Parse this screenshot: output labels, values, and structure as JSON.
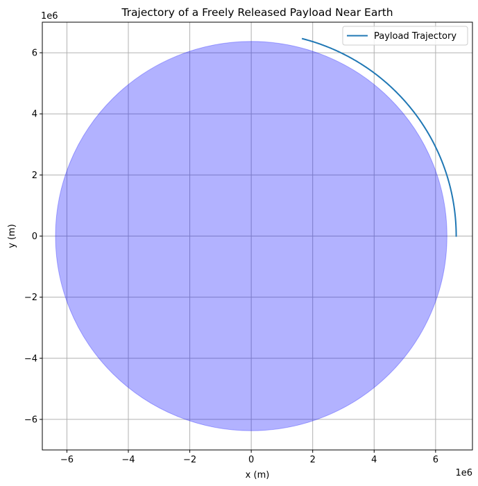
{
  "chart_data": {
    "type": "line",
    "title": "Trajectory of a Freely Released Payload Near Earth",
    "xlabel": "x (m)",
    "ylabel": "y (m)",
    "x_offset_label": "1e6",
    "y_offset_label": "1e6",
    "xlim": [
      -6800000.0,
      7200000.0
    ],
    "ylim": [
      -7000000.0,
      7000000.0
    ],
    "xticks": [
      -6000000.0,
      -4000000.0,
      -2000000.0,
      0,
      2000000.0,
      4000000.0,
      6000000.0
    ],
    "xtick_labels": [
      "−6",
      "−4",
      "−2",
      "0",
      "2",
      "4",
      "6"
    ],
    "yticks": [
      -6000000.0,
      -4000000.0,
      -2000000.0,
      0,
      2000000.0,
      4000000.0,
      6000000.0
    ],
    "ytick_labels": [
      "−6",
      "−4",
      "−2",
      "0",
      "2",
      "4",
      "6"
    ],
    "grid": true,
    "legend_position": "top-right",
    "earth": {
      "radius": 6371000.0,
      "fill_color": "#0000ff",
      "fill_opacity": 0.3
    },
    "series": [
      {
        "name": "Payload Trajectory",
        "color": "#1f77b4",
        "orbit_radius": 6671000.0,
        "start_angle_deg": 0,
        "end_angle_deg": 75.5,
        "x": [
          6671000.0,
          6646000.0,
          6570000.0,
          6443000.0,
          6269000.0,
          6046000.0,
          5777000.0,
          5464000.0,
          5110000.0,
          4717000.0,
          4288000.0,
          3827000.0,
          3336000.0,
          2820000.0,
          2283000.0,
          1727000.0,
          1670000.0
        ],
        "y": [
          0,
          581000.0,
          1158000.0,
          1727000.0,
          2282000.0,
          2820000.0,
          3336000.0,
          3827000.0,
          4288000.0,
          4717000.0,
          5110000.0,
          5464000.0,
          5777000.0,
          6046000.0,
          6269000.0,
          6443000.0,
          6459000.0
        ]
      }
    ]
  },
  "colors": {
    "axis": "#000000",
    "grid": "#b0b0b0",
    "background": "#ffffff"
  }
}
